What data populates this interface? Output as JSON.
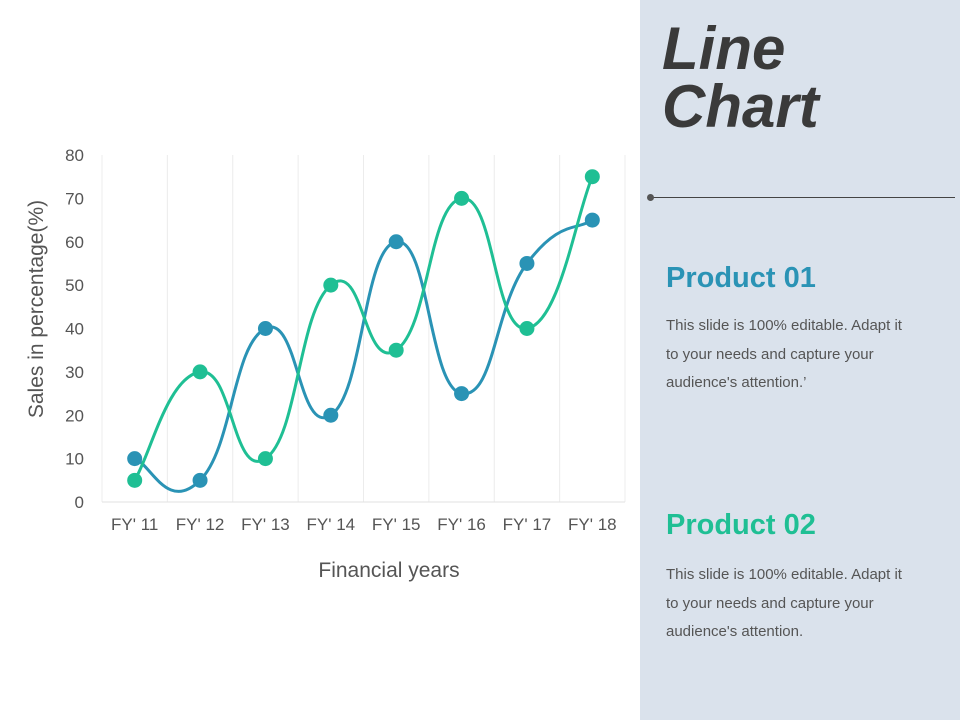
{
  "slide": {
    "title_line1": "Line",
    "title_line2": "Chart"
  },
  "products": [
    {
      "heading": "Product 01",
      "description": "This slide is 100% editable. Adapt it to your needs and capture your audience's attention.’",
      "color": "#2a93b5"
    },
    {
      "heading": "Product 02",
      "description": "This slide is 100% editable. Adapt it to your needs and capture your audience's attention.",
      "color": "#1fbf94"
    }
  ],
  "chart_data": {
    "type": "line",
    "smooth": true,
    "categories": [
      "FY' 11",
      "FY' 12",
      "FY' 13",
      "FY' 14",
      "FY' 15",
      "FY' 16",
      "FY' 17",
      "FY' 18"
    ],
    "series": [
      {
        "values": [
          10,
          5,
          40,
          20,
          60,
          25,
          55,
          65
        ],
        "color": "#2a93b5"
      },
      {
        "values": [
          5,
          30,
          10,
          50,
          35,
          70,
          40,
          75
        ],
        "color": "#1fbf94"
      }
    ],
    "xlabel": "Financial years",
    "ylabel": "Sales in percentage(%)",
    "ylim": [
      0,
      80
    ],
    "yticks": [
      0,
      10,
      20,
      30,
      40,
      50,
      60,
      70,
      80
    ],
    "grid": "vertical",
    "legend": "none"
  }
}
